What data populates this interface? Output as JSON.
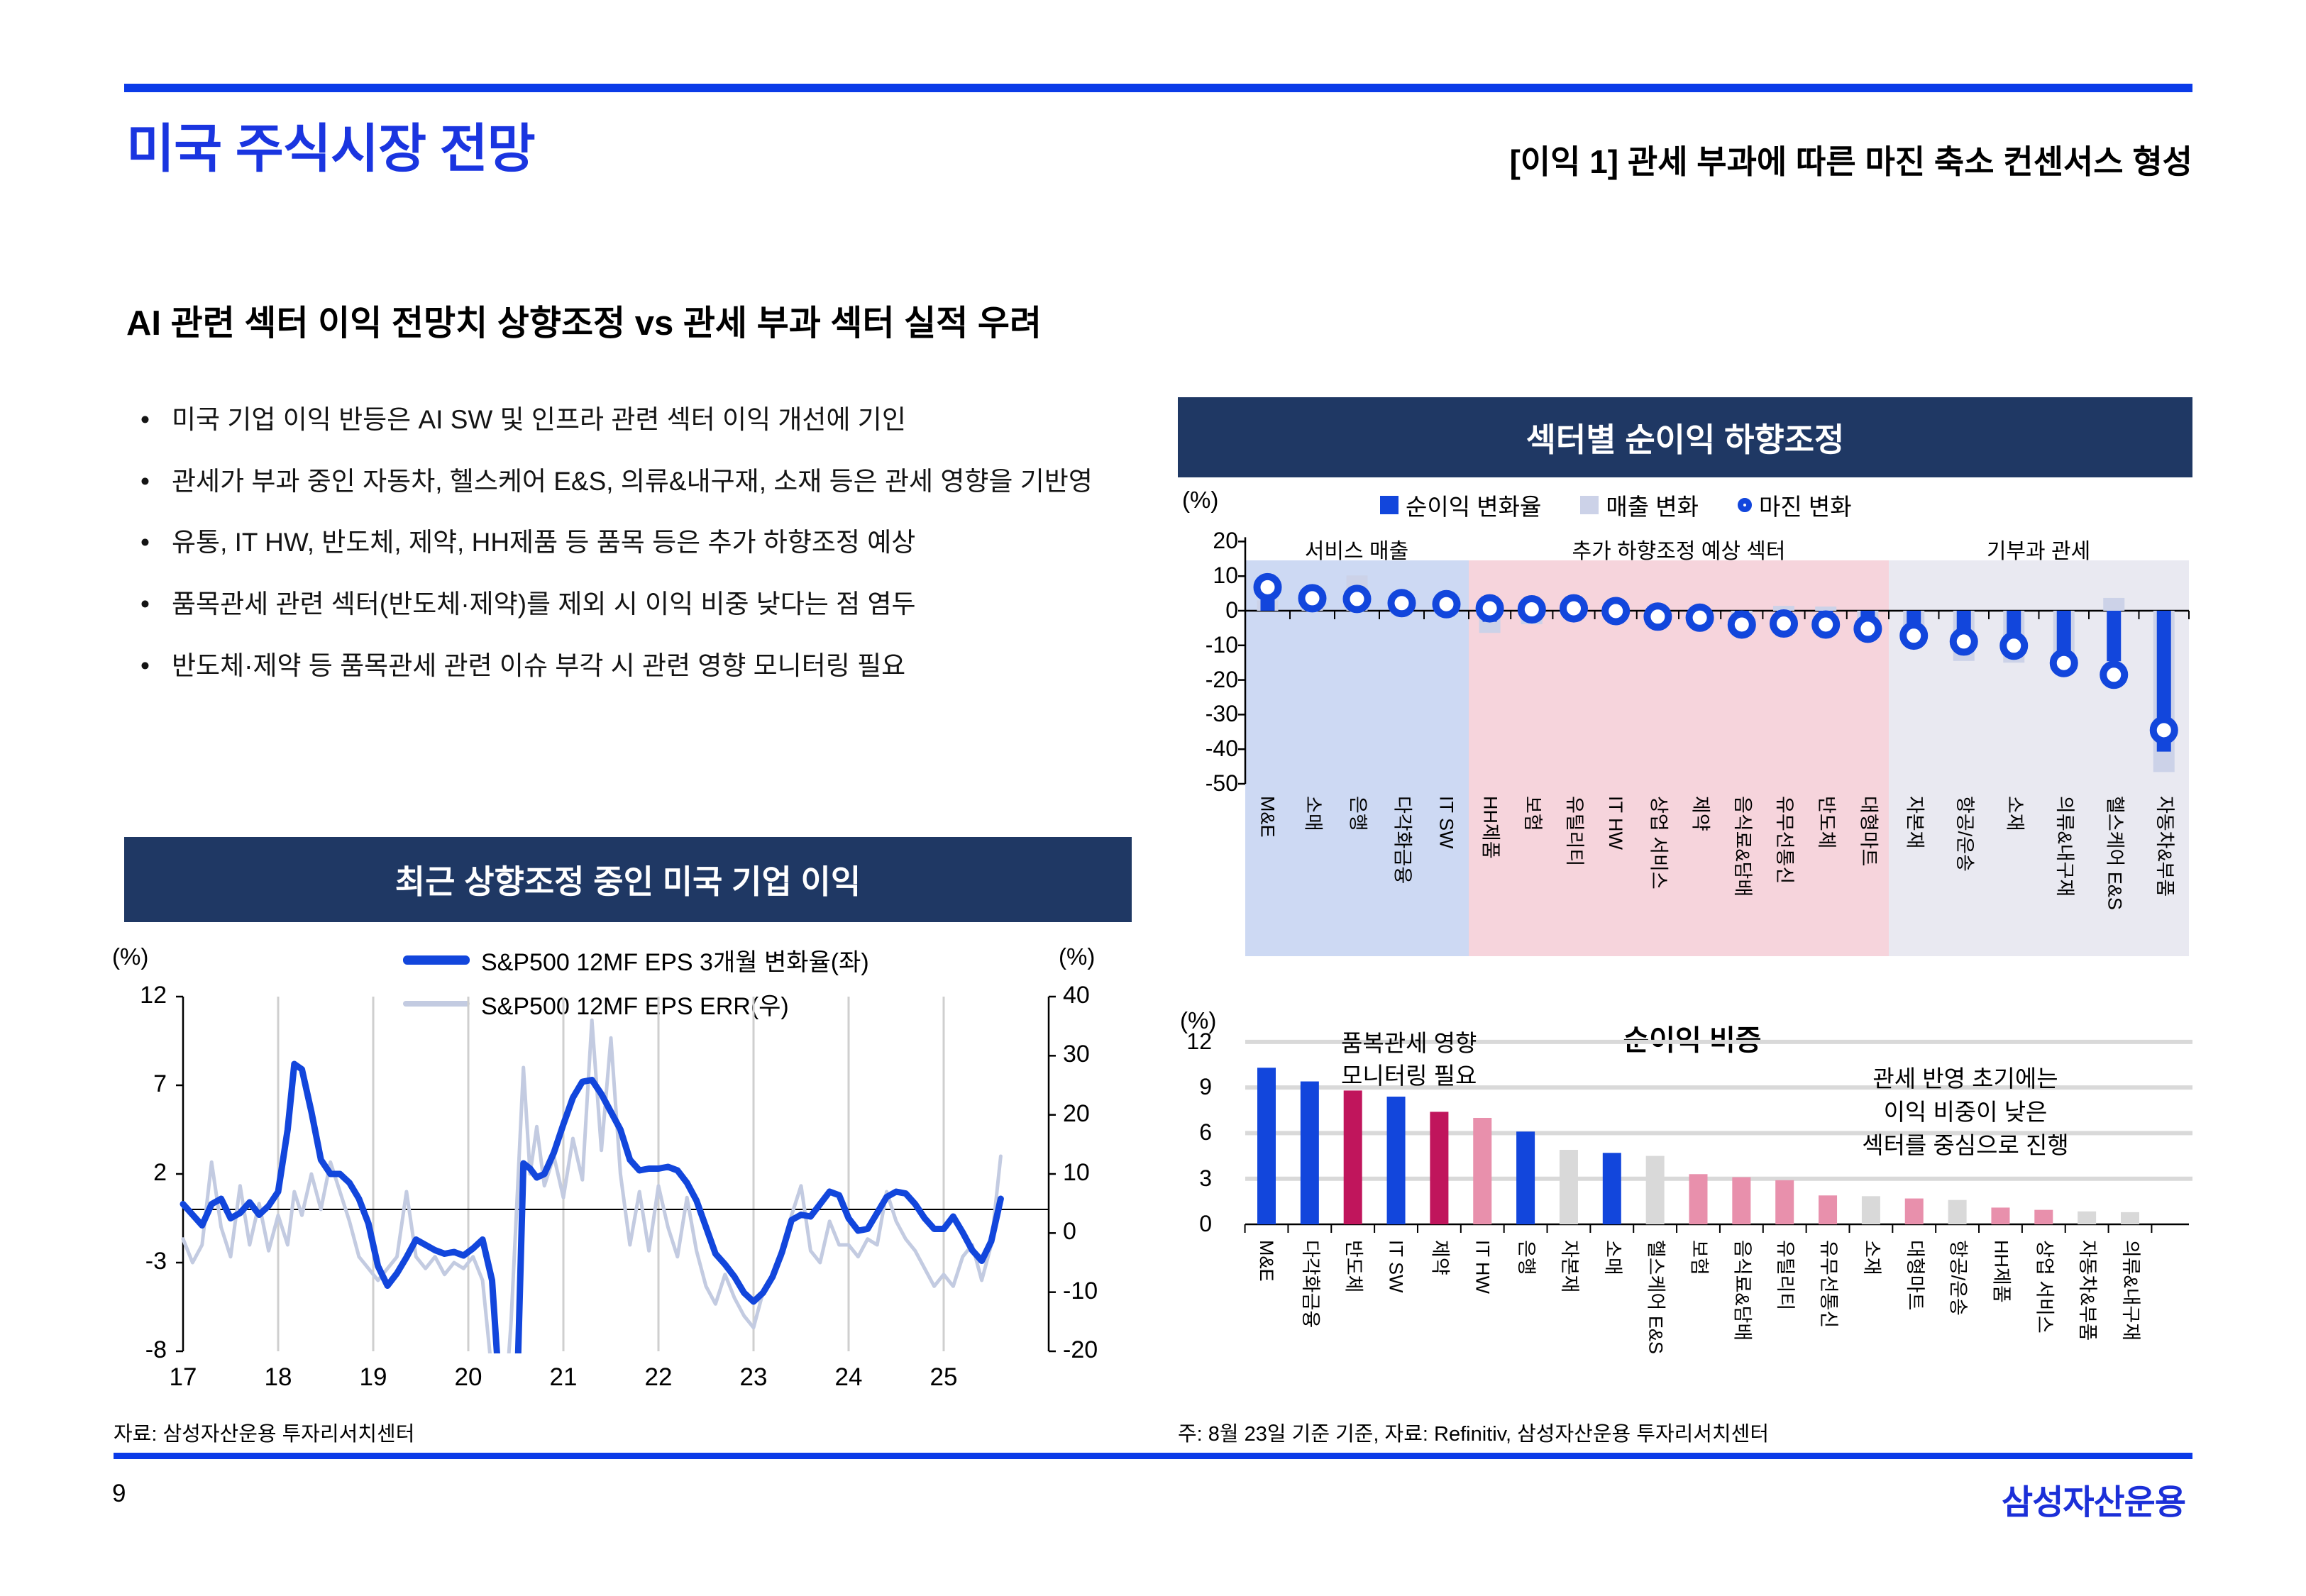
{
  "page": {
    "number": "9",
    "logo": "삼성자산운용"
  },
  "header": {
    "title": "미국 주식시장 전망",
    "right_title": "[이익 1] 관세 부과에 따른 마진 축소 컨센서스 형성"
  },
  "section": {
    "heading": "AI 관련 섹터 이익 전망치 상향조정 vs 관세 부과 섹터 실적 우려",
    "bullet_glyph": "•",
    "bullets": [
      "미국 기업 이익 반등은 AI SW 및 인프라 관련 섹터 이익 개선에 기인",
      "관세가 부과 중인 자동차, 헬스케어 E&S, 의류&내구재, 소재 등은 관세 영향을 기반영",
      "유통, IT HW, 반도체, 제약, HH제품 등 품목 등은 추가 하향조정 예상",
      "품목관세 관련 섹터(반도체·제약)를 제외 시 이익 비중 낮다는 점 염두",
      "반도체·제약 등 품목관세 관련 이슈 부각 시 관련 영향 모니터링 필요"
    ]
  },
  "footer": {
    "left_source": "자료: 삼성자산운용 투자리서치센터",
    "right_note": "주: 8월 23일 기준 기준, 자료: Refinitiv, 삼성자산운용 투자리서치센터"
  },
  "colors": {
    "accent": "#0b3be8",
    "title_blue": "#1a35e0",
    "logo_blue": "#1b2fd8",
    "navy": "#1f3864",
    "chart_blue": "#1246dc",
    "gray_line": "#c3cbe1",
    "lavender": "#ccd2e8",
    "crimson": "#c0155c",
    "pink": "#e890ac",
    "bar_gray": "#d9d9d9",
    "bg_blue": "#cdd9f3",
    "bg_pink": "#f6d4dc",
    "bg_gray": "#e9e9f1",
    "grid": "#cfcfcf",
    "weight_grid": "#d9d9d9"
  },
  "chart_data": [
    {
      "type": "line",
      "title": "최근 상향조정 중인 미국 기업 이익",
      "unit_left": "(%)",
      "unit_right": "(%)",
      "left_yticks": [
        12,
        7,
        2,
        -3,
        -8
      ],
      "right_yticks": [
        40,
        30,
        20,
        10,
        0,
        -10,
        -20
      ],
      "left_ylim": [
        -8,
        12
      ],
      "right_ylim": [
        -20,
        40
      ],
      "x_ticks": [
        "17",
        "18",
        "19",
        "20",
        "21",
        "22",
        "23",
        "24",
        "25"
      ],
      "xlim": [
        17,
        25.7
      ],
      "grid": "vertical",
      "legend_position": "top-center",
      "series": [
        {
          "name": "S&P500 12MF EPS ERR(우)",
          "axis": "right",
          "color_key": "gray_line",
          "points": [
            [
              17.0,
              -1
            ],
            [
              17.1,
              -5
            ],
            [
              17.2,
              -2
            ],
            [
              17.3,
              12
            ],
            [
              17.4,
              1
            ],
            [
              17.5,
              -4
            ],
            [
              17.6,
              8
            ],
            [
              17.7,
              -2
            ],
            [
              17.8,
              5
            ],
            [
              17.9,
              -3
            ],
            [
              18.0,
              3
            ],
            [
              18.1,
              -2
            ],
            [
              18.17,
              7
            ],
            [
              18.25,
              3
            ],
            [
              18.35,
              10
            ],
            [
              18.45,
              4
            ],
            [
              18.55,
              12
            ],
            [
              18.65,
              7
            ],
            [
              18.75,
              2
            ],
            [
              18.85,
              -4
            ],
            [
              18.95,
              -6
            ],
            [
              19.05,
              -8
            ],
            [
              19.15,
              -6
            ],
            [
              19.25,
              -4
            ],
            [
              19.35,
              7
            ],
            [
              19.45,
              -4
            ],
            [
              19.55,
              -6
            ],
            [
              19.65,
              -4
            ],
            [
              19.75,
              -7
            ],
            [
              19.85,
              -5
            ],
            [
              19.95,
              -6
            ],
            [
              20.05,
              -4
            ],
            [
              20.15,
              -8
            ],
            [
              20.25,
              -24
            ],
            [
              20.35,
              -38
            ],
            [
              20.45,
              -15
            ],
            [
              20.52,
              8
            ],
            [
              20.58,
              28
            ],
            [
              20.65,
              10
            ],
            [
              20.72,
              18
            ],
            [
              20.8,
              8
            ],
            [
              20.9,
              13
            ],
            [
              21.0,
              6
            ],
            [
              21.1,
              16
            ],
            [
              21.2,
              9
            ],
            [
              21.3,
              36
            ],
            [
              21.4,
              14
            ],
            [
              21.5,
              33
            ],
            [
              21.6,
              10
            ],
            [
              21.7,
              -2
            ],
            [
              21.8,
              7
            ],
            [
              21.9,
              -3
            ],
            [
              22.0,
              8
            ],
            [
              22.1,
              1
            ],
            [
              22.2,
              -4
            ],
            [
              22.3,
              6
            ],
            [
              22.4,
              -3
            ],
            [
              22.5,
              -9
            ],
            [
              22.6,
              -12
            ],
            [
              22.7,
              -7
            ],
            [
              22.8,
              -11
            ],
            [
              22.9,
              -14
            ],
            [
              23.0,
              -16
            ],
            [
              23.1,
              -10
            ],
            [
              23.2,
              -7
            ],
            [
              23.3,
              -4
            ],
            [
              23.4,
              3
            ],
            [
              23.5,
              8
            ],
            [
              23.6,
              -3
            ],
            [
              23.7,
              -5
            ],
            [
              23.8,
              2
            ],
            [
              23.9,
              -2
            ],
            [
              24.0,
              -2
            ],
            [
              24.1,
              -4
            ],
            [
              24.2,
              -1
            ],
            [
              24.3,
              -2
            ],
            [
              24.4,
              7
            ],
            [
              24.5,
              2
            ],
            [
              24.6,
              -1
            ],
            [
              24.7,
              -3
            ],
            [
              24.8,
              -6
            ],
            [
              24.9,
              -9
            ],
            [
              25.0,
              -7
            ],
            [
              25.1,
              -9
            ],
            [
              25.2,
              -4
            ],
            [
              25.3,
              -2
            ],
            [
              25.4,
              -8
            ],
            [
              25.5,
              -2
            ],
            [
              25.6,
              13
            ]
          ]
        },
        {
          "name": "S&P500 12MF EPS 3개월 변화율(좌)",
          "axis": "left",
          "color_key": "chart_blue",
          "points": [
            [
              17.0,
              0.3
            ],
            [
              17.1,
              -0.3
            ],
            [
              17.2,
              -0.9
            ],
            [
              17.3,
              0.3
            ],
            [
              17.4,
              0.6
            ],
            [
              17.5,
              -0.5
            ],
            [
              17.6,
              -0.2
            ],
            [
              17.7,
              0.4
            ],
            [
              17.8,
              -0.3
            ],
            [
              17.9,
              0.2
            ],
            [
              18.0,
              1.0
            ],
            [
              18.1,
              4.5
            ],
            [
              18.17,
              8.2
            ],
            [
              18.25,
              7.9
            ],
            [
              18.35,
              5.5
            ],
            [
              18.45,
              2.8
            ],
            [
              18.55,
              2.0
            ],
            [
              18.65,
              2.0
            ],
            [
              18.75,
              1.5
            ],
            [
              18.85,
              0.6
            ],
            [
              18.95,
              -0.8
            ],
            [
              19.05,
              -3.2
            ],
            [
              19.15,
              -4.3
            ],
            [
              19.25,
              -3.6
            ],
            [
              19.35,
              -2.7
            ],
            [
              19.45,
              -1.7
            ],
            [
              19.55,
              -2.0
            ],
            [
              19.65,
              -2.3
            ],
            [
              19.75,
              -2.5
            ],
            [
              19.85,
              -2.4
            ],
            [
              19.95,
              -2.6
            ],
            [
              20.05,
              -2.2
            ],
            [
              20.15,
              -1.7
            ],
            [
              20.25,
              -4.0
            ],
            [
              20.35,
              -12.0
            ],
            [
              20.45,
              -16.0
            ],
            [
              20.52,
              -9.0
            ],
            [
              20.58,
              2.6
            ],
            [
              20.65,
              2.3
            ],
            [
              20.72,
              1.8
            ],
            [
              20.8,
              2.0
            ],
            [
              20.9,
              3.2
            ],
            [
              21.0,
              4.8
            ],
            [
              21.1,
              6.3
            ],
            [
              21.2,
              7.2
            ],
            [
              21.3,
              7.3
            ],
            [
              21.4,
              6.5
            ],
            [
              21.5,
              5.5
            ],
            [
              21.6,
              4.5
            ],
            [
              21.7,
              2.8
            ],
            [
              21.8,
              2.2
            ],
            [
              21.9,
              2.3
            ],
            [
              22.0,
              2.3
            ],
            [
              22.1,
              2.4
            ],
            [
              22.2,
              2.2
            ],
            [
              22.3,
              1.5
            ],
            [
              22.4,
              0.5
            ],
            [
              22.5,
              -1.0
            ],
            [
              22.6,
              -2.5
            ],
            [
              22.7,
              -3.1
            ],
            [
              22.8,
              -3.8
            ],
            [
              22.9,
              -4.7
            ],
            [
              23.0,
              -5.2
            ],
            [
              23.1,
              -4.7
            ],
            [
              23.2,
              -3.8
            ],
            [
              23.3,
              -2.4
            ],
            [
              23.4,
              -0.6
            ],
            [
              23.5,
              -0.3
            ],
            [
              23.6,
              -0.4
            ],
            [
              23.7,
              0.3
            ],
            [
              23.8,
              1.0
            ],
            [
              23.9,
              0.8
            ],
            [
              24.0,
              -0.5
            ],
            [
              24.1,
              -1.2
            ],
            [
              24.2,
              -1.1
            ],
            [
              24.3,
              -0.2
            ],
            [
              24.4,
              0.7
            ],
            [
              24.5,
              1.0
            ],
            [
              24.6,
              0.9
            ],
            [
              24.7,
              0.3
            ],
            [
              24.8,
              -0.5
            ],
            [
              24.9,
              -1.1
            ],
            [
              25.0,
              -1.1
            ],
            [
              25.1,
              -0.4
            ],
            [
              25.2,
              -1.3
            ],
            [
              25.3,
              -2.3
            ],
            [
              25.4,
              -2.9
            ],
            [
              25.5,
              -1.8
            ],
            [
              25.6,
              0.6
            ]
          ]
        }
      ],
      "source": "자료: 삼성자산운용 투자리서치센터"
    },
    {
      "type": "bar",
      "title": "섹터별 순이익 하향조정",
      "unit": "(%)",
      "yticks": [
        20,
        10,
        0,
        -10,
        -20,
        -30,
        -40,
        -50
      ],
      "ylim": [
        -50,
        20
      ],
      "legend_position": "top-center",
      "regions": [
        {
          "label": "서비스 매출",
          "count": 5,
          "bg_key": "bg_blue"
        },
        {
          "label": "추가 하향조정 예상 섹터",
          "count": 10,
          "bg_key": "bg_pink"
        },
        {
          "label": "기부과 관세",
          "count": 6,
          "bg_key": "bg_gray"
        }
      ],
      "categories": [
        "M&E",
        "소매",
        "은행",
        "다각화금융",
        "IT SW",
        "HH제품",
        "보험",
        "유틸리티",
        "IT HW",
        "상업 서비스",
        "제약",
        "음식료&담배",
        "유무선통신",
        "반도체",
        "대형마트",
        "자본재",
        "항공/운송",
        "소재",
        "의류&내구재",
        "헬스케어 E&S",
        "자동차&부품"
      ],
      "series": [
        {
          "name": "순이익 변화율",
          "marker": "bar",
          "color_key": "chart_blue",
          "values": [
            8.5,
            5.3,
            6.8,
            1.5,
            1.2,
            -3.2,
            -1.8,
            -0.5,
            -0.3,
            -0.5,
            -0.8,
            -5.2,
            -4.0,
            -4.6,
            -6.7,
            -7.7,
            -11.5,
            -13.5,
            -17.6,
            -14.6,
            -40.7
          ]
        },
        {
          "name": "매출 변화",
          "marker": "bar",
          "color_key": "lavender",
          "values": [
            3.0,
            2.0,
            10.2,
            -0.8,
            0.5,
            -6.4,
            -3.9,
            -1.7,
            -1.0,
            1.2,
            0.9,
            -6.5,
            1.4,
            1.2,
            -5.0,
            -6.0,
            -14.5,
            -15.0,
            -16.0,
            3.7,
            -46.6
          ]
        },
        {
          "name": "마진 변화",
          "marker": "circle",
          "color_key": "chart_blue",
          "values": [
            6.8,
            3.6,
            3.4,
            2.2,
            1.9,
            0.7,
            0.4,
            0.7,
            -0.1,
            -1.7,
            -2.0,
            -4.0,
            -3.7,
            -4.0,
            -5.2,
            -7.2,
            -8.9,
            -10.1,
            -15.1,
            -18.5,
            -34.5
          ]
        }
      ]
    },
    {
      "type": "bar",
      "title": "순이익 비중",
      "unit": "(%)",
      "yticks": [
        12,
        9,
        6,
        3,
        0
      ],
      "ylim": [
        0,
        12
      ],
      "grid": "horizontal",
      "categories": [
        "M&E",
        "다각화금융",
        "반도체",
        "IT SW",
        "제약",
        "IT HW",
        "은행",
        "자본재",
        "소매",
        "헬스케어 E&S",
        "보험",
        "음식료&담배",
        "유틸리티",
        "유무선통신",
        "소재",
        "대형마트",
        "항공/운송",
        "HH제품",
        "상업 서비스",
        "자동차&부품",
        "의류&내구재"
      ],
      "values": [
        10.3,
        9.4,
        8.8,
        8.4,
        7.4,
        7.0,
        6.1,
        4.9,
        4.7,
        4.5,
        3.3,
        3.1,
        2.9,
        1.9,
        1.85,
        1.7,
        1.6,
        1.1,
        0.95,
        0.85,
        0.8
      ],
      "bar_color_keys": [
        "chart_blue",
        "chart_blue",
        "crimson",
        "chart_blue",
        "crimson",
        "pink",
        "chart_blue",
        "bar_gray",
        "chart_blue",
        "bar_gray",
        "pink",
        "pink",
        "pink",
        "pink",
        "bar_gray",
        "pink",
        "bar_gray",
        "pink",
        "pink",
        "bar_gray",
        "bar_gray"
      ],
      "annotations": [
        {
          "lines": [
            "품복관세 영향",
            "모니터링 필요"
          ],
          "position": "upper-left"
        },
        {
          "lines": [
            "관세 반영 초기에는",
            "이익 비중이 낮은",
            "섹터를 중심으로 진행"
          ],
          "position": "upper-right"
        }
      ]
    }
  ]
}
